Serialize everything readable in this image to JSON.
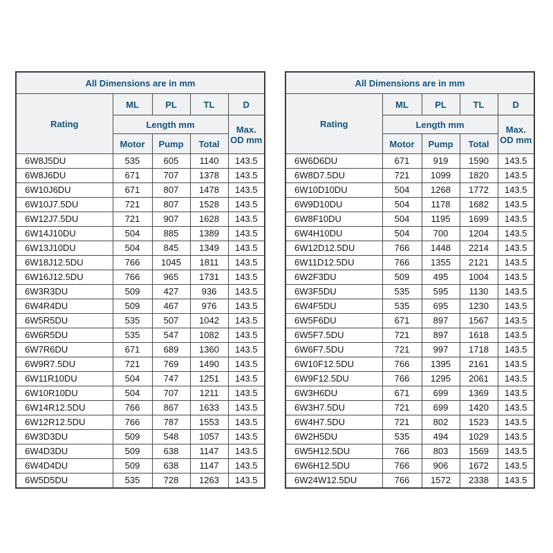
{
  "colors": {
    "header_text": "#14537e",
    "header_bg": "#f0f1f2",
    "row_bg": "#ffffff",
    "data_text": "#151515",
    "border": "#4a4a4b",
    "outer_border": "#3b3b3c"
  },
  "tables": [
    {
      "id": "left",
      "title": "All Dimensions are in mm",
      "headers": {
        "rating": "Rating",
        "ml": "ML",
        "pl": "PL",
        "tl": "TL",
        "d": "D",
        "length": "Length mm",
        "motor": "Motor",
        "pump": "Pump",
        "total": "Total",
        "max_od": "Max. OD mm"
      },
      "rows": [
        [
          "6W8J5DU",
          "535",
          "605",
          "1140",
          "143.5"
        ],
        [
          "6W8J6DU",
          "671",
          "707",
          "1378",
          "143.5"
        ],
        [
          "6W10J6DU",
          "671",
          "807",
          "1478",
          "143.5"
        ],
        [
          "6W10J7.5DU",
          "721",
          "807",
          "1528",
          "143.5"
        ],
        [
          "6W12J7.5DU",
          "721",
          "907",
          "1628",
          "143.5"
        ],
        [
          "6W14J10DU",
          "504",
          "885",
          "1389",
          "143.5"
        ],
        [
          "6W13J10DU",
          "504",
          "845",
          "1349",
          "143.5"
        ],
        [
          "6W18J12.5DU",
          "766",
          "1045",
          "1811",
          "143.5"
        ],
        [
          "6W16J12.5DU",
          "766",
          "965",
          "1731",
          "143.5"
        ],
        [
          "6W3R3DU",
          "509",
          "427",
          "936",
          "143.5"
        ],
        [
          "6W4R4DU",
          "509",
          "467",
          "976",
          "143.5"
        ],
        [
          "6W5R5DU",
          "535",
          "507",
          "1042",
          "143.5"
        ],
        [
          "6W6R5DU",
          "535",
          "547",
          "1082",
          "143.5"
        ],
        [
          "6W7R6DU",
          "671",
          "689",
          "1360",
          "143.5"
        ],
        [
          "6W9R7.5DU",
          "721",
          "769",
          "1490",
          "143.5"
        ],
        [
          "6W11R10DU",
          "504",
          "747",
          "1251",
          "143.5"
        ],
        [
          "6W10R10DU",
          "504",
          "707",
          "1211",
          "143.5"
        ],
        [
          "6W14R12.5DU",
          "766",
          "867",
          "1633",
          "143.5"
        ],
        [
          "6W12R12.5DU",
          "766",
          "787",
          "1553",
          "143.5"
        ],
        [
          "6W3D3DU",
          "509",
          "548",
          "1057",
          "143.5"
        ],
        [
          "6W4D3DU",
          "509",
          "638",
          "1147",
          "143.5"
        ],
        [
          "6W4D4DU",
          "509",
          "638",
          "1147",
          "143.5"
        ],
        [
          "6W5D5DU",
          "535",
          "728",
          "1263",
          "143.5"
        ]
      ]
    },
    {
      "id": "right",
      "title": "All Dimensions are in mm",
      "headers": {
        "rating": "Rating",
        "ml": "ML",
        "pl": "PL",
        "tl": "TL",
        "d": "D",
        "length": "Length mm",
        "motor": "Motor",
        "pump": "Pump",
        "total": "Total",
        "max_od": "Max. OD mm"
      },
      "rows": [
        [
          "6W6D6DU",
          "671",
          "919",
          "1590",
          "143.5"
        ],
        [
          "6W8D7.5DU",
          "721",
          "1099",
          "1820",
          "143.5"
        ],
        [
          "6W10D10DU",
          "504",
          "1268",
          "1772",
          "143.5"
        ],
        [
          "6W9D10DU",
          "504",
          "1178",
          "1682",
          "143.5"
        ],
        [
          "6W8F10DU",
          "504",
          "1195",
          "1699",
          "143.5"
        ],
        [
          "6W4H10DU",
          "504",
          "700",
          "1204",
          "143.5"
        ],
        [
          "6W12D12.5DU",
          "766",
          "1448",
          "2214",
          "143.5"
        ],
        [
          "6W11D12.5DU",
          "766",
          "1355",
          "2121",
          "143.5"
        ],
        [
          "6W2F3DU",
          "509",
          "495",
          "1004",
          "143.5"
        ],
        [
          "6W3F5DU",
          "535",
          "595",
          "1130",
          "143.5"
        ],
        [
          "6W4F5DU",
          "535",
          "695",
          "1230",
          "143.5"
        ],
        [
          "6W5F6DU",
          "671",
          "897",
          "1567",
          "143.5"
        ],
        [
          "6W5F7.5DU",
          "721",
          "897",
          "1618",
          "143.5"
        ],
        [
          "6W6F7.5DU",
          "721",
          "997",
          "1718",
          "143.5"
        ],
        [
          "6W10F12.5DU",
          "766",
          "1395",
          "2161",
          "143.5"
        ],
        [
          "6W9F12.5DU",
          "766",
          "1295",
          "2061",
          "143.5"
        ],
        [
          "6W3H6DU",
          "671",
          "699",
          "1369",
          "143.5"
        ],
        [
          "6W3H7.5DU",
          "721",
          "699",
          "1420",
          "143.5"
        ],
        [
          "6W4H7.5DU",
          "721",
          "802",
          "1523",
          "143.5"
        ],
        [
          "6W2H5DU",
          "535",
          "494",
          "1029",
          "143.5"
        ],
        [
          "6W5H12.5DU",
          "766",
          "803",
          "1569",
          "143.5"
        ],
        [
          "6W6H12.5DU",
          "766",
          "906",
          "1672",
          "143.5"
        ],
        [
          "6W24W12.5DU",
          "766",
          "1572",
          "2338",
          "143.5"
        ]
      ]
    }
  ]
}
